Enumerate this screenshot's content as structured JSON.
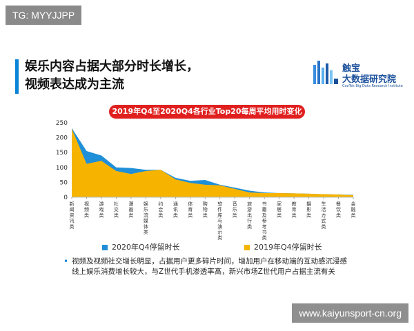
{
  "watermark_top": "TG: MYYJJPP",
  "watermark_bottom": "www.kaiyunsport-cn.org",
  "title": [
    "娱乐内容占据大部分时长增长，",
    "视频表达成为主流"
  ],
  "logo": {
    "cn_line1": "触宝",
    "cn_line2": "大数据研究院",
    "en": "CooTek Big Data Research Institute"
  },
  "colors": {
    "accent": "#0a84d6",
    "series_2020": "#1f8fd8",
    "series_2019": "#f6b400",
    "pill": "#e0201f"
  },
  "chart_data": {
    "type": "area",
    "title": "2019年Q4至2020Q4各行业Top20每周平均用时变化",
    "ylim": [
      0,
      250
    ],
    "yticks": [
      0,
      50,
      100,
      150,
      200,
      250
    ],
    "categories": [
      "新闻资讯类",
      "视频类",
      "游戏类",
      "社交类",
      "漫画类",
      "娱乐流媒体类",
      "约会类",
      "通讯类",
      "体育类",
      "购物类",
      "软件库与演示类",
      "音乐类",
      "旅游出行类",
      "书籍及参考书类",
      "家居类",
      "教育类",
      "摄影类",
      "生活方式类",
      "餐饮类",
      "金融类"
    ],
    "series": [
      {
        "name": "2020年Q4停留时长",
        "values": [
          232,
          155,
          140,
          100,
          98,
          92,
          92,
          65,
          55,
          58,
          42,
          32,
          22,
          16,
          14,
          13,
          12,
          10,
          9,
          8
        ]
      },
      {
        "name": "2019年Q4停留时长",
        "values": [
          230,
          112,
          122,
          88,
          78,
          88,
          92,
          60,
          48,
          42,
          40,
          28,
          16,
          14,
          14,
          13,
          12,
          10,
          9,
          7
        ]
      }
    ],
    "grid": false,
    "legend": "bottom"
  },
  "notes": [
    "视频及视频社交增长明显，占据用户更多碎片时间，增加用户在移动端的互动感沉浸感",
    "线上娱乐消费增长较大，与Z世代手机渗透率高，新兴市场Z世代用户占据主流有关"
  ]
}
